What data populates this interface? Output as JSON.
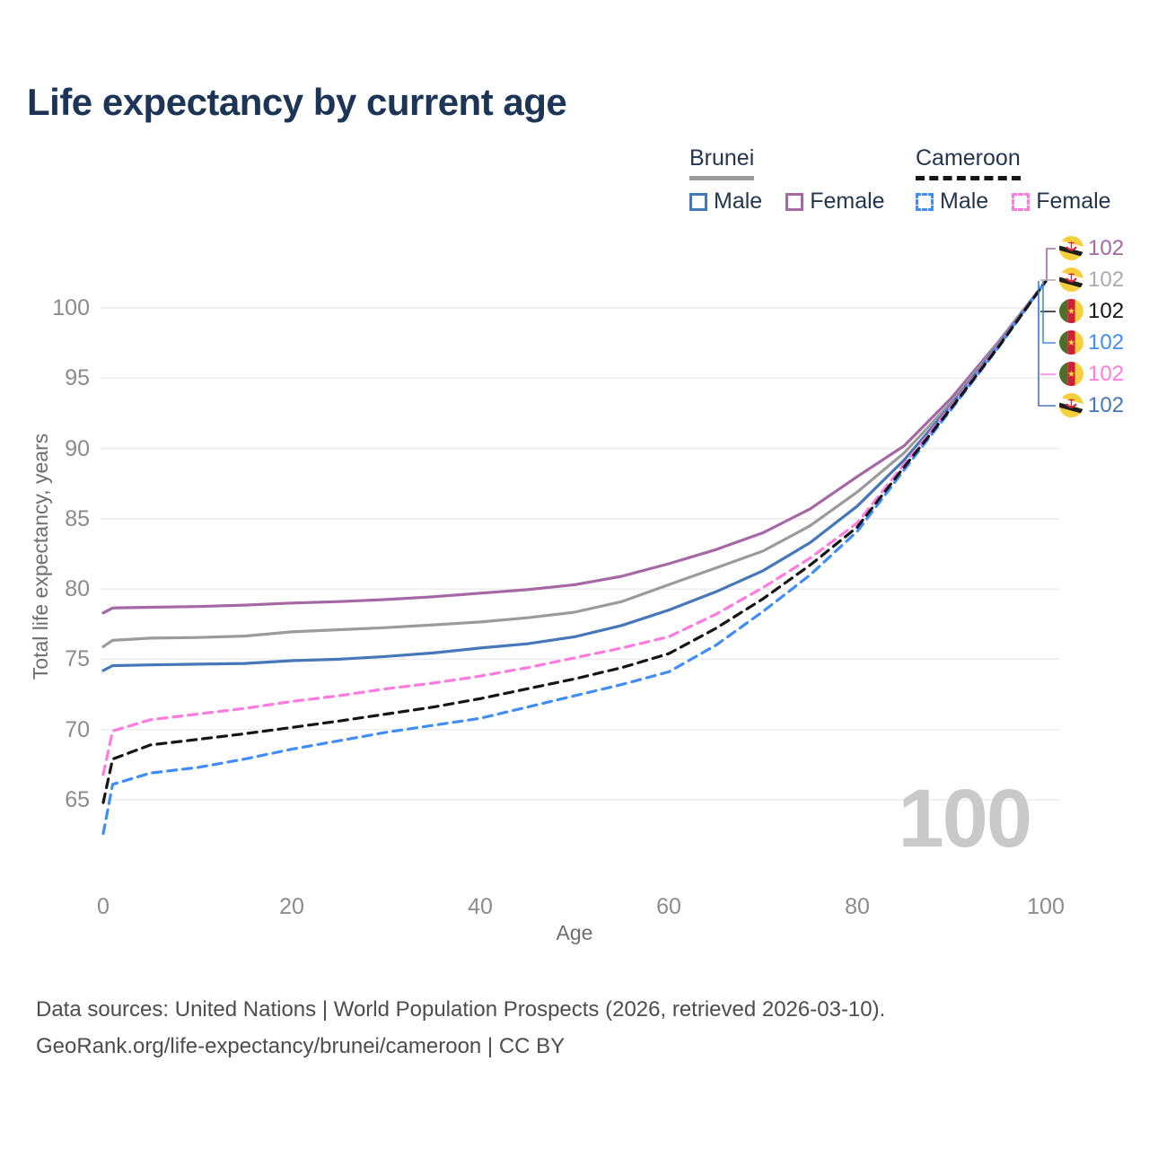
{
  "title": "Life expectancy by current age",
  "legend": {
    "groups": [
      {
        "label": "Brunei",
        "line_style": "solid",
        "line_color": "#9b9b9b",
        "items": [
          {
            "label": "Male",
            "swatch_color": "#4677b8",
            "swatch_style": "solid"
          },
          {
            "label": "Female",
            "swatch_color": "#a667a5",
            "swatch_style": "solid"
          }
        ]
      },
      {
        "label": "Cameroon",
        "line_style": "dashed",
        "line_color": "#151515",
        "items": [
          {
            "label": "Male",
            "swatch_color": "#3f8df5",
            "swatch_style": "dashed"
          },
          {
            "label": "Female",
            "swatch_color": "#ff7bdf",
            "swatch_style": "dashed"
          }
        ]
      }
    ]
  },
  "chart_data": {
    "type": "line",
    "title": "Life expectancy by current age",
    "xlabel": "Age",
    "ylabel": "Total life expectancy, years",
    "xticks": [
      0,
      20,
      40,
      60,
      80,
      100
    ],
    "yticks": [
      65,
      70,
      75,
      80,
      85,
      90,
      95,
      100
    ],
    "xlim": [
      0,
      104
    ],
    "ylim": [
      61.5,
      103.5
    ],
    "grid": "horizontal-only",
    "legend_position": "top-right",
    "ages": [
      0,
      1,
      5,
      10,
      15,
      20,
      25,
      30,
      35,
      40,
      45,
      50,
      55,
      60,
      65,
      70,
      75,
      80,
      85,
      90,
      95,
      100
    ],
    "series": [
      {
        "name": "Brunei Female",
        "country": "Brunei",
        "sex": "Female",
        "style": "solid",
        "color": "#a667a5",
        "values": [
          78.3,
          78.65,
          78.7,
          78.75,
          78.85,
          79.0,
          79.1,
          79.25,
          79.45,
          79.7,
          79.95,
          80.3,
          80.9,
          81.8,
          82.8,
          84.0,
          85.7,
          88.0,
          90.2,
          93.6,
          97.6,
          101.9
        ]
      },
      {
        "name": "Brunei",
        "country": "Brunei",
        "sex": "Both",
        "style": "solid",
        "color": "#9b9b9b",
        "values": [
          75.9,
          76.35,
          76.5,
          76.55,
          76.65,
          76.95,
          77.1,
          77.25,
          77.45,
          77.65,
          77.95,
          78.35,
          79.1,
          80.3,
          81.5,
          82.7,
          84.5,
          86.9,
          89.7,
          93.3,
          97.5,
          101.9
        ]
      },
      {
        "name": "Brunei Male",
        "country": "Brunei",
        "sex": "Male",
        "style": "solid",
        "color": "#4677b8",
        "values": [
          74.2,
          74.55,
          74.6,
          74.65,
          74.7,
          74.9,
          75.0,
          75.2,
          75.45,
          75.8,
          76.1,
          76.6,
          77.4,
          78.5,
          79.8,
          81.3,
          83.3,
          85.9,
          89.2,
          93.1,
          97.4,
          101.9
        ]
      },
      {
        "name": "Cameroon Female",
        "country": "Cameroon",
        "sex": "Female",
        "style": "dashed",
        "color": "#ff7bdf",
        "values": [
          66.8,
          69.9,
          70.7,
          71.1,
          71.5,
          72.0,
          72.4,
          72.9,
          73.3,
          73.8,
          74.4,
          75.1,
          75.8,
          76.6,
          78.2,
          80.1,
          82.2,
          84.7,
          88.9,
          93.0,
          97.3,
          101.9
        ]
      },
      {
        "name": "Cameroon Male",
        "country": "Cameroon",
        "sex": "Male",
        "style": "dashed",
        "color": "#3f8df5",
        "values": [
          62.6,
          66.1,
          66.9,
          67.3,
          67.9,
          68.6,
          69.2,
          69.8,
          70.3,
          70.8,
          71.6,
          72.4,
          73.2,
          74.1,
          76.0,
          78.4,
          81.0,
          84.1,
          88.5,
          92.8,
          97.2,
          101.9
        ]
      },
      {
        "name": "Cameroon",
        "country": "Cameroon",
        "sex": "Both",
        "style": "dashed",
        "color": "#151515",
        "values": [
          64.8,
          67.9,
          68.9,
          69.3,
          69.7,
          70.15,
          70.6,
          71.1,
          71.6,
          72.2,
          72.9,
          73.6,
          74.4,
          75.4,
          77.2,
          79.3,
          81.7,
          84.4,
          88.7,
          92.9,
          97.25,
          101.9
        ]
      }
    ]
  },
  "end_labels": [
    {
      "flag": "brunei",
      "series": "Brunei Female",
      "value": "102",
      "color": "#a667a5"
    },
    {
      "flag": "brunei",
      "series": "Brunei",
      "value": "102",
      "color": "#ababab"
    },
    {
      "flag": "cameroon",
      "series": "Cameroon",
      "value": "102",
      "color": "#151515"
    },
    {
      "flag": "cameroon",
      "series": "Cameroon Male",
      "value": "102",
      "color": "#3f8df5"
    },
    {
      "flag": "cameroon",
      "series": "Cameroon Female",
      "value": "102",
      "color": "#ff7bdf"
    },
    {
      "flag": "brunei",
      "series": "Brunei Male",
      "value": "102",
      "color": "#4677b8"
    }
  ],
  "watermark": "100",
  "footer": {
    "line1": "Data sources: United Nations | World Population Prospects (2026, retrieved 2026-03-10).",
    "line2": "GeoRank.org/life-expectancy/brunei/cameroon | CC BY"
  }
}
